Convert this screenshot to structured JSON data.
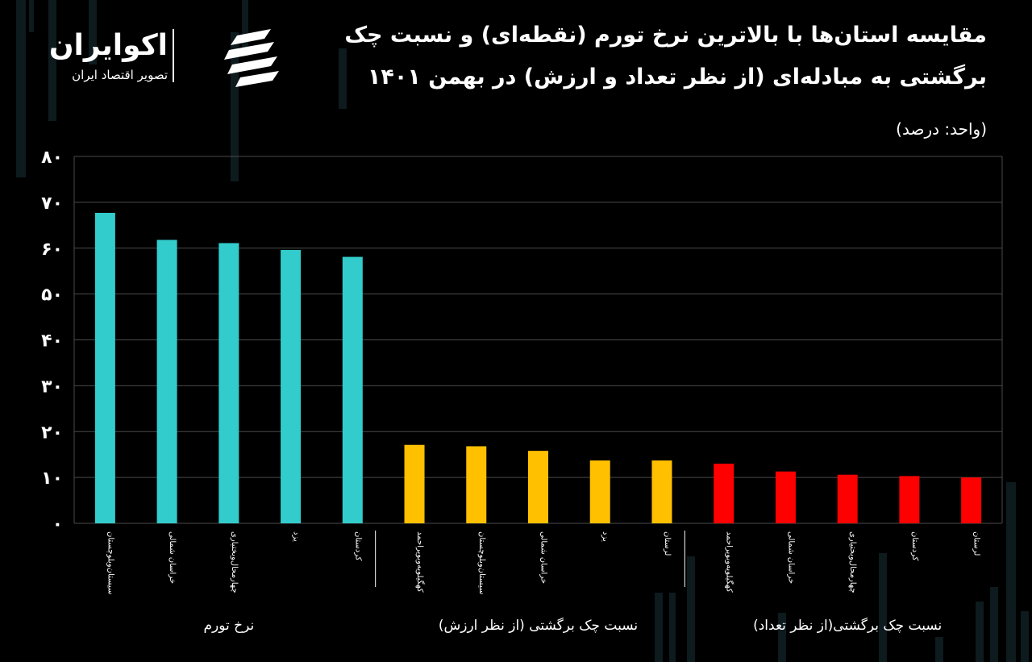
{
  "brand": {
    "name": "اکوایران",
    "tagline": "تصویر اقتصاد ایران"
  },
  "header": {
    "title_line1": "مقایسه استان‌ها با بالاترین نرخ تورم (نقطه‌ای) و نسبت چک",
    "title_line2": "برگشتی به مبادله‌ای (از نظر تعداد و ارزش) در بهمن ۱۴۰۱",
    "unit": "(واحد: درصد)"
  },
  "colors": {
    "background": "#000000",
    "inflation": "#33cccc",
    "value_ratio": "#ffc000",
    "count_ratio": "#ff0000",
    "grid": "#4a4a4a",
    "text": "#ffffff"
  },
  "chart_data": {
    "type": "bar",
    "ylim": [
      0,
      80
    ],
    "yticks": [
      "۰",
      "۱۰",
      "۲۰",
      "۳۰",
      "۴۰",
      "۵۰",
      "۶۰",
      "۷۰",
      "۸۰"
    ],
    "grid": true,
    "title": "",
    "xlabel": "",
    "ylabel": "",
    "groups": [
      {
        "name": "نرخ تورم",
        "color": "#33cccc",
        "categories": [
          "سیستان‌وبلوچستان",
          "خراسان شمالی",
          "چهارمحال‌وبختیاری",
          "یزد",
          "کردستان"
        ],
        "values": [
          67.7,
          61.8,
          61.1,
          59.6,
          58.1
        ]
      },
      {
        "name": "نسبت چک برگشتی (از نظر ارزش)",
        "color": "#ffc000",
        "categories": [
          "کهگیلویه‌وبویراحمد",
          "سیستان‌وبلوچستان",
          "خراسان شمالی",
          "یزد",
          "لرستان"
        ],
        "values": [
          17.1,
          16.8,
          15.8,
          13.7,
          13.7
        ]
      },
      {
        "name": "نسبت چک برگشتی(از نظر تعداد)",
        "color": "#ff0000",
        "categories": [
          "کهگیلویه‌وبویراحمد",
          "خراسان شمالی",
          "چهارمحال‌وبختیاری",
          "کردستان",
          "لرستان"
        ],
        "values": [
          13.0,
          11.3,
          10.6,
          10.3,
          10.0
        ]
      }
    ]
  }
}
